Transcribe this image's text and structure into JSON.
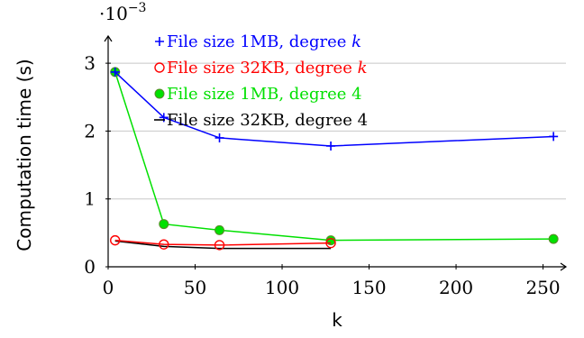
{
  "chart_data": {
    "type": "line",
    "title": "",
    "xlabel": "k",
    "ylabel": "Computation time (s)",
    "y_scale_label": "·10",
    "y_scale_exponent": "−3",
    "xlim": [
      0,
      258
    ],
    "ylim": [
      0,
      3.4
    ],
    "x_ticks": [
      0,
      50,
      100,
      150,
      200,
      250
    ],
    "y_ticks": [
      0,
      1,
      2,
      3
    ],
    "grid": "horizontal",
    "legend_position": "top-left",
    "series": [
      {
        "name": "File size 1MB, degree k",
        "name_main": "File size 1MB, degree ",
        "name_var": "k",
        "color": "#0000ff",
        "marker": "plus",
        "x": [
          4,
          32,
          64,
          128,
          256
        ],
        "y": [
          2.87,
          2.2,
          1.9,
          1.78,
          1.92
        ]
      },
      {
        "name": "File size 32KB, degree k",
        "name_main": "File size 32KB, degree ",
        "name_var": "k",
        "color": "#ff0000",
        "marker": "circle-open",
        "x": [
          4,
          32,
          64,
          128
        ],
        "y": [
          0.39,
          0.33,
          0.32,
          0.35
        ]
      },
      {
        "name": "File size 1MB, degree 4",
        "name_main": "File size 1MB, degree 4",
        "name_var": "",
        "color": "#00e000",
        "marker": "circle-filled",
        "x": [
          4,
          32,
          64,
          128,
          256
        ],
        "y": [
          2.87,
          0.63,
          0.54,
          0.39,
          0.41
        ]
      },
      {
        "name": "File size 32KB, degree 4",
        "name_main": "File size 32KB, degree 4",
        "name_var": "",
        "color": "#000000",
        "marker": "line",
        "x": [
          4,
          32,
          64,
          128
        ],
        "y": [
          0.38,
          0.3,
          0.27,
          0.27
        ]
      }
    ]
  }
}
